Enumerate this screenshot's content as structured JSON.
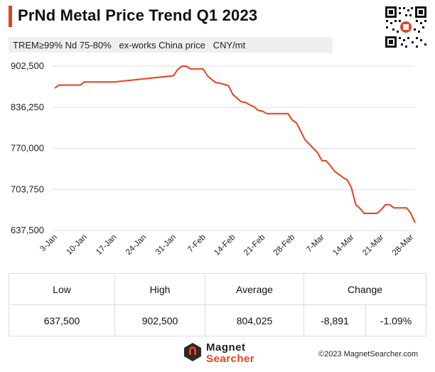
{
  "header": {
    "title": "PrNd Metal Price Trend Q1 2023",
    "subtitle": "TREM≥99% Nd 75-80%   ex-works China price   CNY/mt"
  },
  "chart_data": {
    "type": "line",
    "title": "PrNd Metal Price Trend Q1 2023",
    "xlabel": "",
    "ylabel": "",
    "ylim": [
      637500,
      902500
    ],
    "y_ticks": [
      "902,500",
      "836,250",
      "770,000",
      "703,750",
      "637,500"
    ],
    "y_tick_values": [
      902500,
      836250,
      770000,
      703750,
      637500
    ],
    "x_ticks": [
      "3-Jan",
      "10-Jan",
      "17-Jan",
      "24-Jan",
      "31-Jan",
      "7-Feb",
      "14-Feb",
      "21-Feb",
      "28-Feb",
      "7-Mar",
      "14-Mar",
      "21-Mar",
      "28-Mar"
    ],
    "x_tick_days": [
      0,
      7,
      14,
      21,
      28,
      35,
      42,
      49,
      56,
      63,
      70,
      77,
      84
    ],
    "grid": true,
    "line_color": "#e8401c",
    "series": [
      {
        "x": [
          0,
          1,
          6,
          7,
          14,
          28,
          29,
          30,
          31,
          32,
          35,
          36,
          37,
          38,
          39,
          40,
          41,
          42,
          43,
          44,
          45,
          46,
          47,
          48,
          49,
          50,
          51,
          52,
          55,
          56,
          57,
          58,
          59,
          60,
          61,
          62,
          63,
          64,
          65,
          66,
          67,
          68,
          69,
          70,
          71,
          72,
          73,
          74,
          75,
          76,
          77,
          78,
          79,
          80,
          81,
          82,
          83,
          84,
          85
        ],
        "values": [
          867000,
          872000,
          872000,
          877000,
          877000,
          887000,
          897000,
          902500,
          902500,
          898000,
          898000,
          887000,
          881000,
          876000,
          875000,
          873000,
          871000,
          857000,
          851000,
          845000,
          844000,
          840000,
          837000,
          831000,
          830000,
          826000,
          826000,
          826000,
          826000,
          816000,
          811000,
          798000,
          784000,
          777000,
          770000,
          763000,
          750000,
          750000,
          742000,
          733000,
          728000,
          723000,
          719000,
          706000,
          679000,
          673000,
          665000,
          665000,
          665000,
          665000,
          671000,
          679000,
          679000,
          674000,
          674000,
          674000,
          674000,
          665000,
          650000
        ]
      }
    ]
  },
  "stats": {
    "headers": [
      "Low",
      "High",
      "Average",
      "Change"
    ],
    "values": [
      "637,500",
      "902,500",
      "804,025",
      "-8,891",
      "-1.09%"
    ]
  },
  "footer": {
    "logo_line1": "Magnet",
    "logo_line2": "Searcher",
    "copyright": "©2023 MagnetSearcher.com"
  },
  "colors": {
    "accent": "#e8401c",
    "grid": "#dddddd"
  },
  "icons": {
    "qr": "qr-code-icon",
    "logo": "magnet-logo-icon"
  }
}
